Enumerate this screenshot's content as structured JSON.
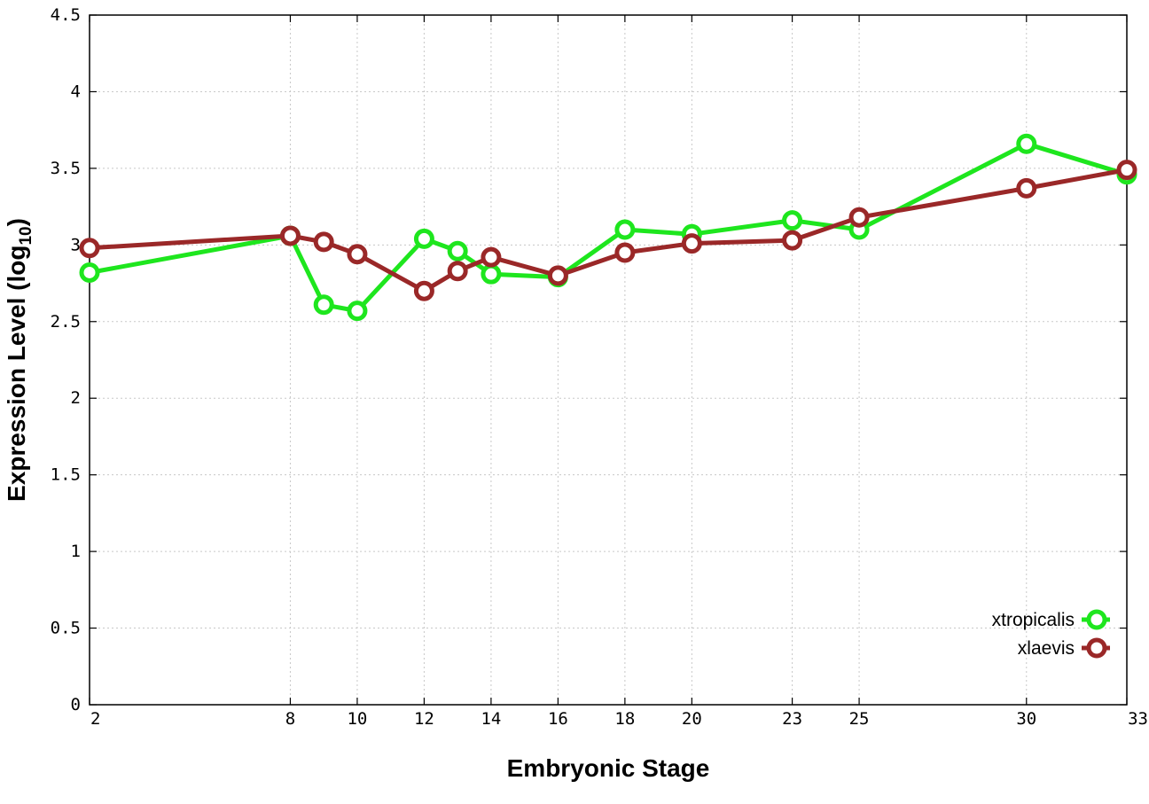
{
  "chart_data": {
    "type": "line",
    "title": "",
    "xlabel": "Embryonic Stage",
    "ylabel_main": "Expression Level (log",
    "ylabel_sub": "10",
    "ylabel_close": ")",
    "x": [
      2,
      8,
      9,
      10,
      12,
      13,
      14,
      16,
      18,
      20,
      23,
      25,
      30,
      33
    ],
    "x_ticks": [
      2,
      8,
      10,
      12,
      14,
      16,
      18,
      20,
      23,
      25,
      30,
      33
    ],
    "x_tick_labels": [
      "2",
      "8",
      "10",
      "12",
      "14",
      "16",
      "18",
      "20",
      "23",
      "25",
      "30",
      "33"
    ],
    "xlim": [
      2,
      33
    ],
    "ylim": [
      0,
      4.5
    ],
    "y_ticks": [
      0,
      0.5,
      1,
      1.5,
      2,
      2.5,
      3,
      3.5,
      4,
      4.5
    ],
    "y_tick_labels": [
      "0",
      "0.5",
      "1",
      "1.5",
      "2",
      "2.5",
      "3",
      "3.5",
      "4",
      "4.5"
    ],
    "grid": true,
    "legend_position": "bottom-right",
    "series": [
      {
        "name": "xtropicalis",
        "color": "#1ee61e",
        "values": [
          2.82,
          3.06,
          2.61,
          2.57,
          3.04,
          2.96,
          2.81,
          2.79,
          3.1,
          3.07,
          3.16,
          3.1,
          3.66,
          3.46
        ]
      },
      {
        "name": "xlaevis",
        "color": "#9a2828",
        "values": [
          2.98,
          3.06,
          3.02,
          2.94,
          2.7,
          2.83,
          2.92,
          2.8,
          2.95,
          3.01,
          3.03,
          3.18,
          3.37,
          3.49
        ]
      }
    ]
  }
}
